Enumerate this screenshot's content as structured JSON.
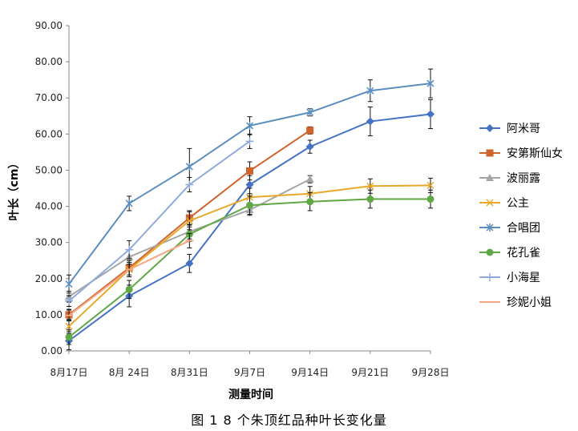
{
  "caption": "图 1    8 个朱顶红品种叶长变化量",
  "chart_data": {
    "type": "line",
    "title": "",
    "xlabel": "测量时间",
    "ylabel": "叶长（cm）",
    "categories": [
      "8月17日",
      "8月 24日",
      "8月31日",
      "9月7日",
      "9月14日",
      "9月21日",
      "9月28日"
    ],
    "ylim": [
      0,
      90
    ],
    "yticks": [
      "0.00",
      "10.00",
      "20.00",
      "30.00",
      "40.00",
      "50.00",
      "60.00",
      "70.00",
      "80.00",
      "90.00"
    ],
    "grid": false,
    "legend_position": "right",
    "series": [
      {
        "name": "阿米哥",
        "color": "#4472C4",
        "marker": "diamond",
        "values": [
          2.8,
          15.2,
          24.2,
          46.0,
          56.5,
          63.5,
          65.5
        ],
        "errors": [
          2.5,
          3.0,
          2.5,
          2.5,
          1.8,
          4.0,
          4.0
        ]
      },
      {
        "name": "安第斯仙女",
        "color": "#D0632B",
        "marker": "square",
        "values": [
          10.0,
          23.0,
          36.8,
          49.8,
          61.0,
          null,
          null
        ],
        "errors": [
          1.5,
          2.0,
          2.0,
          2.5,
          1.0,
          null,
          null
        ]
      },
      {
        "name": "波丽露",
        "color": "#A5A5A5",
        "marker": "triangle",
        "values": [
          15.0,
          26.0,
          33.0,
          39.0,
          47.5,
          null,
          null
        ],
        "errors": [
          1.5,
          2.0,
          2.0,
          1.5,
          1.0,
          null,
          null
        ]
      },
      {
        "name": "公主",
        "color": "#E8A92A",
        "marker": "x",
        "values": [
          6.8,
          22.5,
          36.0,
          42.5,
          43.5,
          45.6,
          45.8
        ],
        "errors": [
          2.0,
          2.0,
          2.5,
          2.5,
          2.0,
          2.0,
          2.0
        ]
      },
      {
        "name": "合唱团",
        "color": "#5B8DBE",
        "marker": "asterisk",
        "values": [
          18.5,
          40.8,
          51.0,
          62.3,
          66.0,
          72.0,
          74.0
        ],
        "errors": [
          2.5,
          2.0,
          5.0,
          2.5,
          1.0,
          3.0,
          4.0
        ]
      },
      {
        "name": "花孔雀",
        "color": "#5FA845",
        "marker": "circle",
        "values": [
          3.8,
          17.0,
          32.3,
          40.3,
          41.3,
          42.0,
          42.0
        ],
        "errors": [
          2.0,
          2.5,
          2.0,
          2.5,
          2.5,
          2.5,
          2.5
        ]
      },
      {
        "name": "小海星",
        "color": "#8FAADC",
        "marker": "plus",
        "values": [
          13.8,
          28.0,
          46.0,
          58.0,
          null,
          null,
          null
        ],
        "errors": [
          1.5,
          2.5,
          2.0,
          2.0,
          null,
          null,
          null
        ]
      },
      {
        "name": "珍妮小姐",
        "color": "#F4A582",
        "marker": "dash",
        "values": [
          9.8,
          22.5,
          30.5,
          null,
          null,
          null,
          null
        ],
        "errors": [
          1.5,
          2.0,
          2.0,
          null,
          null,
          null,
          null
        ]
      }
    ]
  }
}
